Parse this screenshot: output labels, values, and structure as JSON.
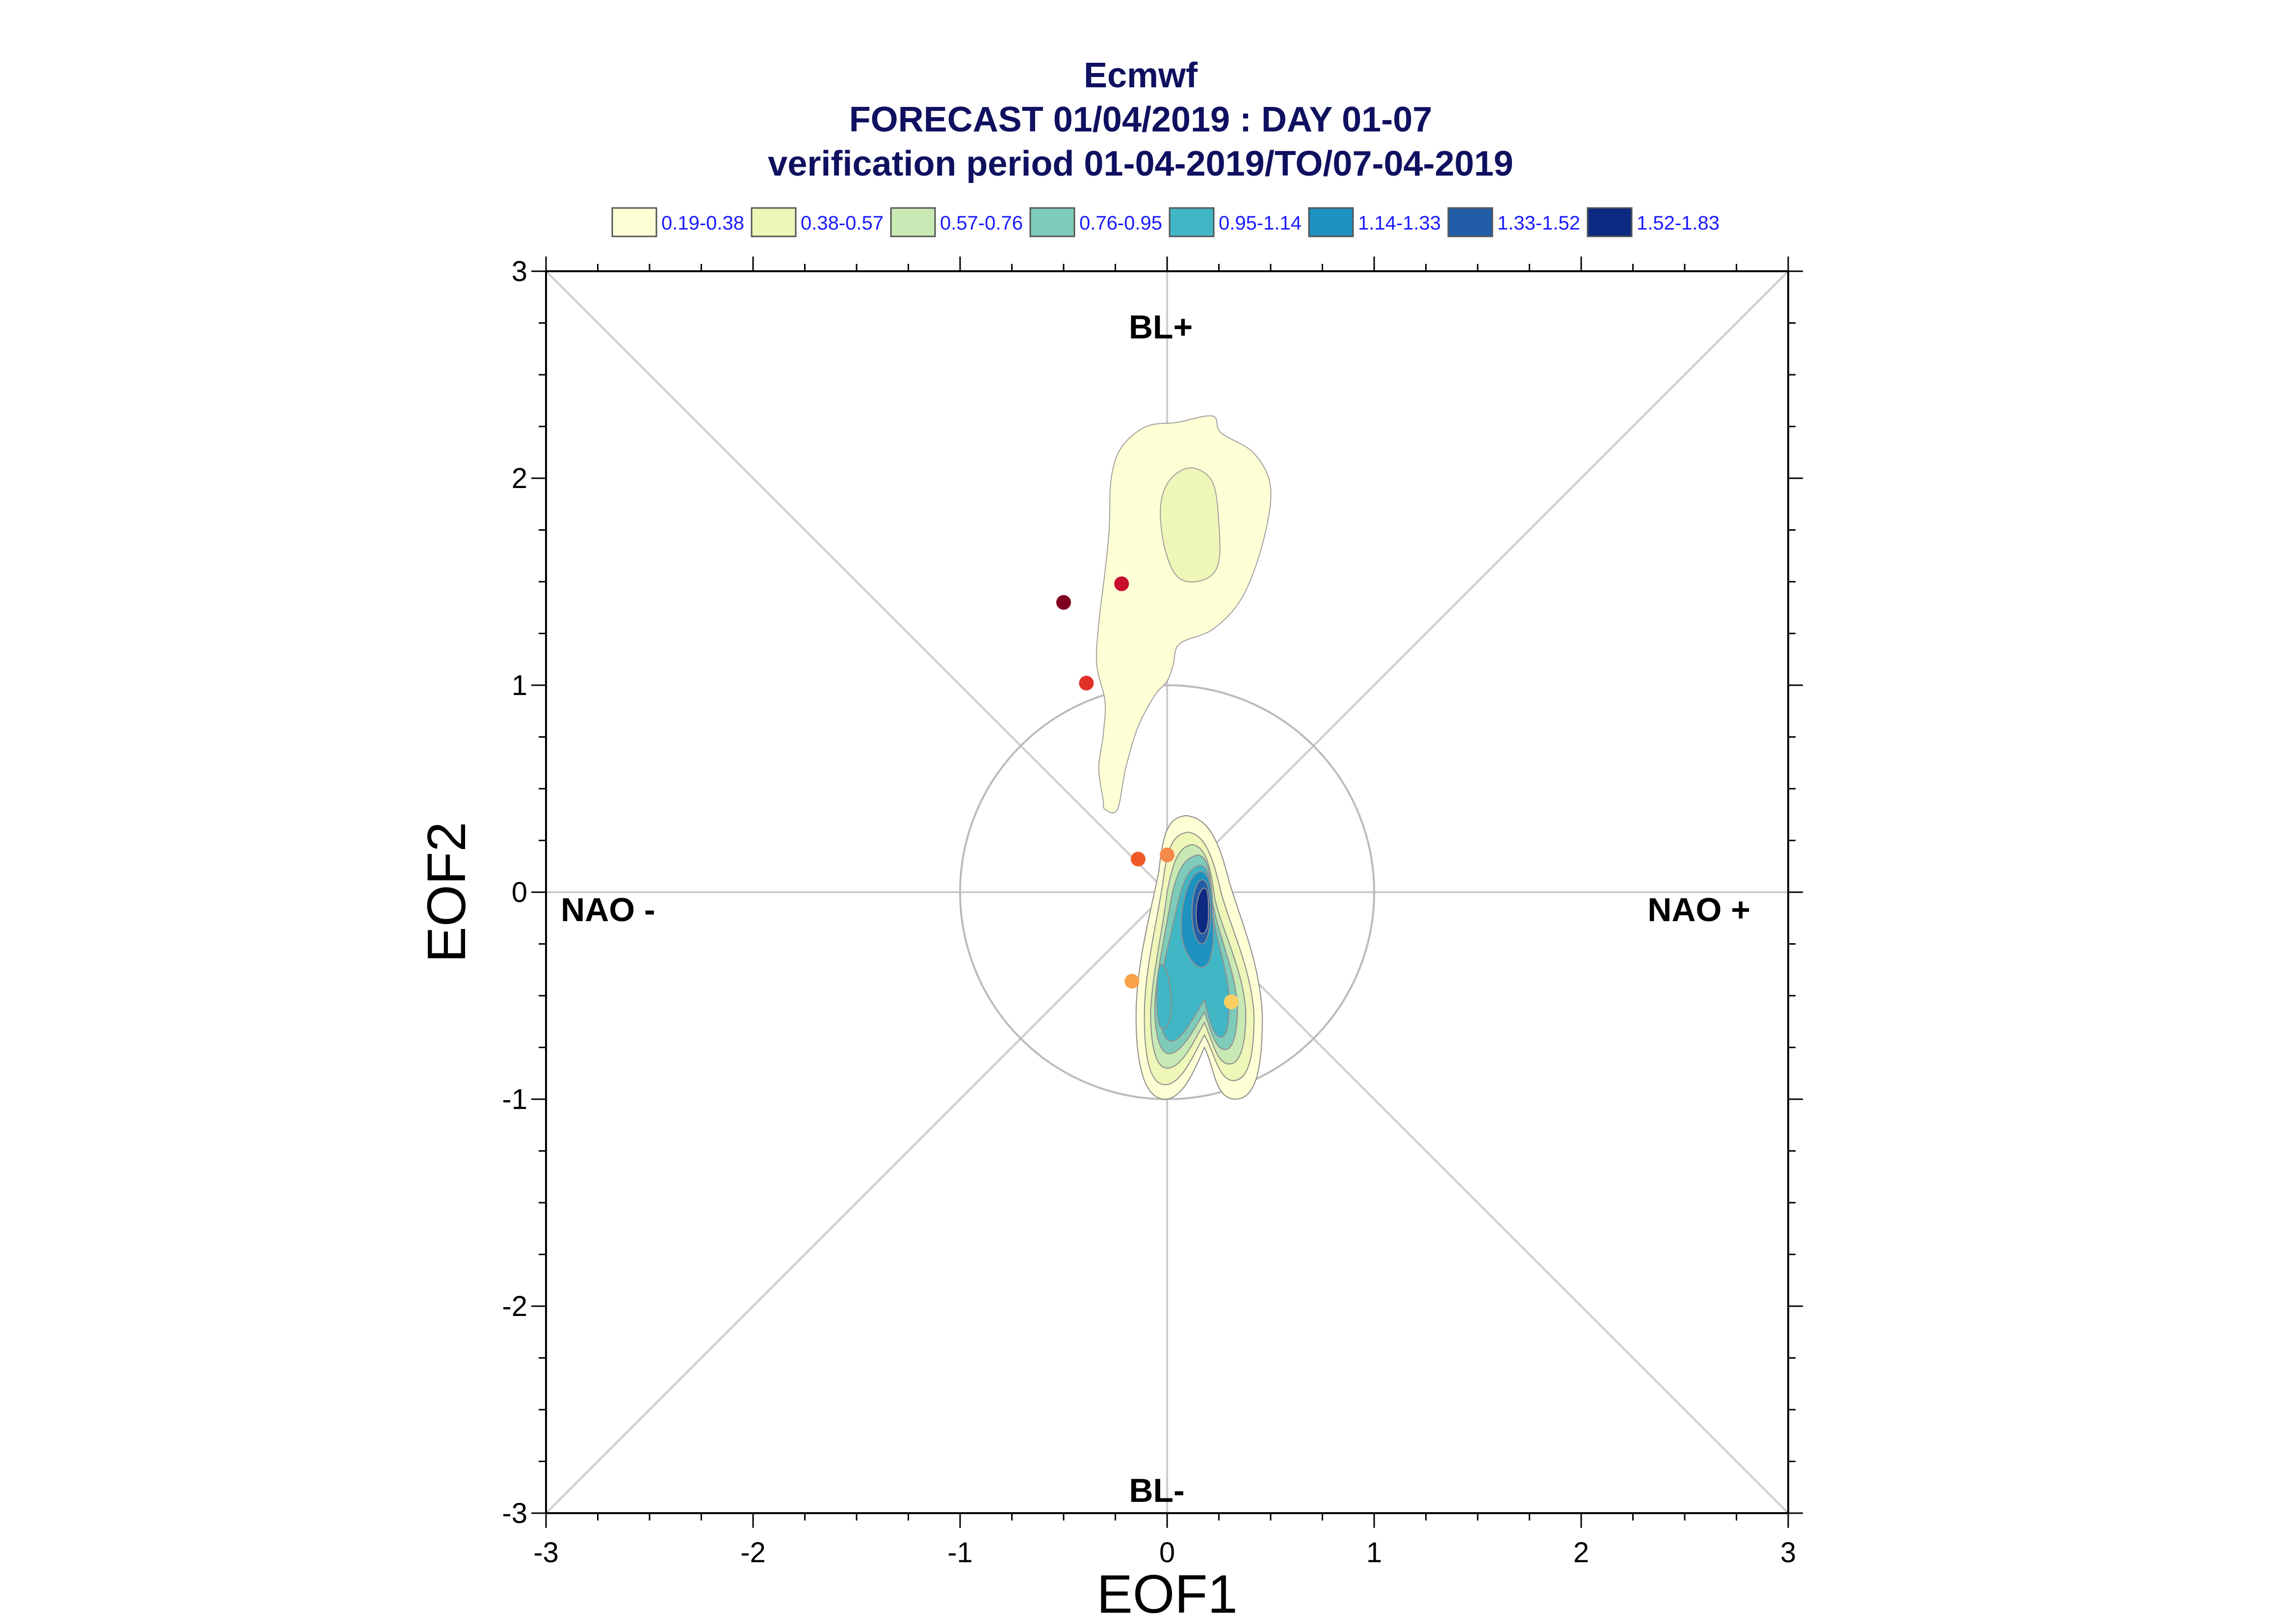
{
  "chart_data": {
    "type": "contour",
    "title": "Ecmwf",
    "subtitle_lines": [
      "FORECAST 01/04/2019 : DAY 01-07",
      "verification period 01-04-2019/TO/07-04-2019"
    ],
    "xlabel": "EOF1",
    "ylabel": "EOF2",
    "xlim": [
      -3,
      3
    ],
    "ylim": [
      -3,
      3
    ],
    "xticks": [
      "-3",
      "-2",
      "-1",
      "0",
      "1",
      "2",
      "3"
    ],
    "yticks": [
      "-3",
      "-2",
      "-1",
      "0",
      "1",
      "2",
      "3"
    ],
    "reference_circle_radius": 1,
    "diagonal_lines": true,
    "regime_labels": {
      "top": "BL+",
      "bottom": "BL-",
      "left": "NAO -",
      "right": "NAO +"
    },
    "legend": {
      "placement": "top",
      "entries": [
        {
          "label": "0.19-0.38",
          "color": "#ffffd6"
        },
        {
          "label": "0.38-0.57",
          "color": "#eef6b8"
        },
        {
          "label": "0.57-0.76",
          "color": "#c8e8b4"
        },
        {
          "label": "0.76-0.95",
          "color": "#7ecbba"
        },
        {
          "label": "0.95-1.14",
          "color": "#41b6c4"
        },
        {
          "label": "1.14-1.33",
          "color": "#1d91c0"
        },
        {
          "label": "1.33-1.52",
          "color": "#225ea8"
        },
        {
          "label": "1.52-1.83",
          "color": "#0c2a82"
        }
      ]
    },
    "upper_cloud_extent": {
      "level_1_outline": [
        [
          -0.3,
          0.4
        ],
        [
          -0.24,
          0.4
        ],
        [
          -0.2,
          0.6
        ],
        [
          -0.14,
          0.8
        ],
        [
          -0.06,
          0.95
        ],
        [
          0.0,
          1.02
        ],
        [
          0.03,
          1.1
        ],
        [
          0.06,
          1.2
        ],
        [
          0.22,
          1.27
        ],
        [
          0.36,
          1.42
        ],
        [
          0.46,
          1.68
        ],
        [
          0.5,
          1.95
        ],
        [
          0.42,
          2.12
        ],
        [
          0.26,
          2.22
        ],
        [
          0.22,
          2.3
        ],
        [
          0.05,
          2.27
        ],
        [
          -0.1,
          2.25
        ],
        [
          -0.22,
          2.15
        ],
        [
          -0.27,
          2.0
        ],
        [
          -0.28,
          1.75
        ],
        [
          -0.3,
          1.55
        ],
        [
          -0.33,
          1.3
        ],
        [
          -0.34,
          1.1
        ],
        [
          -0.3,
          0.92
        ],
        [
          -0.31,
          0.75
        ],
        [
          -0.33,
          0.6
        ],
        [
          -0.31,
          0.45
        ]
      ],
      "level_2_outline": [
        [
          -0.02,
          1.7
        ],
        [
          0.03,
          1.55
        ],
        [
          0.1,
          1.5
        ],
        [
          0.2,
          1.52
        ],
        [
          0.25,
          1.6
        ],
        [
          0.25,
          1.78
        ],
        [
          0.22,
          1.98
        ],
        [
          0.12,
          2.05
        ],
        [
          0.02,
          2.0
        ],
        [
          -0.03,
          1.88
        ]
      ]
    },
    "points": [
      {
        "x": -0.5,
        "y": 1.4,
        "color": "#7f0020"
      },
      {
        "x": -0.22,
        "y": 1.49,
        "color": "#c8102e"
      },
      {
        "x": -0.39,
        "y": 1.01,
        "color": "#e03028"
      },
      {
        "x": -0.14,
        "y": 0.16,
        "color": "#f05a28"
      },
      {
        "x": 0.0,
        "y": 0.18,
        "color": "#f4894a"
      },
      {
        "x": -0.17,
        "y": -0.43,
        "color": "#f9a24a"
      },
      {
        "x": 0.31,
        "y": -0.53,
        "color": "#fcd060"
      }
    ]
  }
}
